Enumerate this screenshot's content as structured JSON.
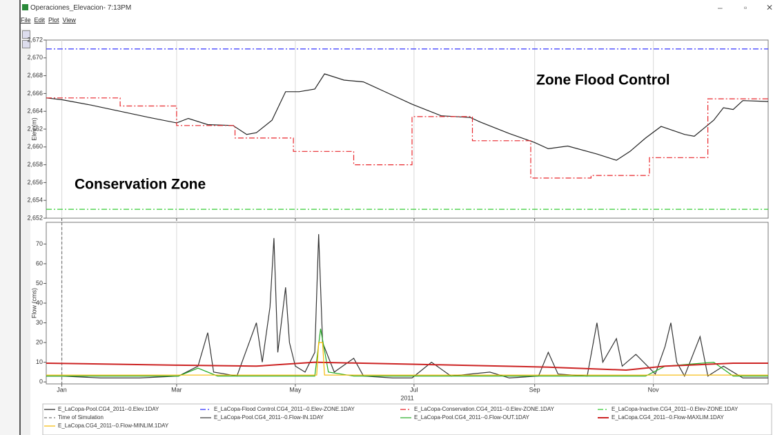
{
  "window": {
    "title": "Operaciones_Elevacion- 7:13PM",
    "menu": [
      "File",
      "Edit",
      "Plot",
      "View"
    ]
  },
  "chart_data": [
    {
      "type": "line",
      "ylabel": "Elev (m)",
      "xlim": [
        -8,
        363
      ],
      "ylim": [
        2652,
        2672
      ],
      "xticks": [
        {
          "value": 0,
          "label": "Jan"
        },
        {
          "value": 59,
          "label": "Mar"
        },
        {
          "value": 120,
          "label": "May"
        },
        {
          "value": 181,
          "label": "Jul"
        },
        {
          "value": 243,
          "label": "Sep"
        },
        {
          "value": 304,
          "label": "Nov"
        }
      ],
      "yticks": [
        {
          "value": 2652,
          "label": "2,652"
        },
        {
          "value": 2654,
          "label": "2,654"
        },
        {
          "value": 2656,
          "label": "2,656"
        },
        {
          "value": 2658,
          "label": "2,658"
        },
        {
          "value": 2660,
          "label": "2,660"
        },
        {
          "value": 2662,
          "label": "2,662"
        },
        {
          "value": 2664,
          "label": "2,664"
        },
        {
          "value": 2666,
          "label": "2,666"
        },
        {
          "value": 2668,
          "label": "2,668"
        },
        {
          "value": 2670,
          "label": "2,670"
        },
        {
          "value": 2672,
          "label": "2,672"
        }
      ],
      "grid": "x",
      "annotations": [
        "Zone Flood Control",
        "Conservation Zone"
      ],
      "series": [
        {
          "name": "E_LaCopa-Pool.CG4_2011--0.Elev.1DAY",
          "color": "#222222",
          "style": "solid",
          "x": [
            -8,
            0,
            15,
            30,
            45,
            59,
            65,
            75,
            88,
            95,
            100,
            108,
            115,
            122,
            130,
            135,
            145,
            155,
            165,
            180,
            195,
            210,
            215,
            230,
            243,
            250,
            260,
            275,
            285,
            292,
            300,
            308,
            320,
            325,
            335,
            340,
            345,
            350,
            363
          ],
          "values": [
            2665.5,
            2665.3,
            2664.7,
            2664,
            2663.3,
            2662.7,
            2663.2,
            2662.5,
            2662.4,
            2661.4,
            2661.6,
            2663,
            2666.2,
            2666.2,
            2666.5,
            2668.2,
            2667.5,
            2667.3,
            2666.3,
            2664.8,
            2663.5,
            2663.3,
            2662.8,
            2661.5,
            2660.5,
            2659.8,
            2660.1,
            2659.2,
            2658.5,
            2659.5,
            2661,
            2662.3,
            2661.4,
            2661.2,
            2663,
            2664.4,
            2664.2,
            2665.2,
            2665.1
          ]
        },
        {
          "name": "E_LaCopa-Flood Control.CG4_2011--0.Elev-ZONE.1DAY",
          "color": "#3333ff",
          "style": "dashdot",
          "x": [
            -8,
            363
          ],
          "values": [
            2671,
            2671
          ]
        },
        {
          "name": "E_LaCopa-Conservation.CG4_2011--0.Elev-ZONE.1DAY",
          "color": "#e8252a",
          "style": "dashdot",
          "x": [
            -8,
            30,
            30,
            59,
            59,
            89,
            89,
            119,
            119,
            150,
            150,
            180,
            180,
            211,
            211,
            241,
            241,
            272,
            272,
            302,
            302,
            332,
            332,
            363
          ],
          "values": [
            2665.5,
            2665.5,
            2664.6,
            2664.6,
            2662.4,
            2662.4,
            2661,
            2661,
            2659.5,
            2659.5,
            2658,
            2658,
            2663.4,
            2663.4,
            2660.7,
            2660.7,
            2656.5,
            2656.5,
            2656.8,
            2656.8,
            2658.8,
            2658.8,
            2665.4,
            2665.4
          ]
        },
        {
          "name": "E_LaCopa-Inactive.CG4_2011--0.Elev-ZONE.1DAY",
          "color": "#33cc33",
          "style": "dashdot",
          "x": [
            -8,
            363
          ],
          "values": [
            2653,
            2653
          ]
        }
      ]
    },
    {
      "type": "line",
      "ylabel": "Flow (cms)",
      "xlabel": "2011",
      "xlim": [
        -8,
        363
      ],
      "ylim": [
        -1,
        81
      ],
      "xticks": [
        {
          "value": 0,
          "label": "Jan"
        },
        {
          "value": 59,
          "label": "Mar"
        },
        {
          "value": 120,
          "label": "May"
        },
        {
          "value": 181,
          "label": "Jul"
        },
        {
          "value": 243,
          "label": "Sep"
        },
        {
          "value": 304,
          "label": "Nov"
        }
      ],
      "yticks": [
        0,
        10,
        20,
        30,
        40,
        50,
        60,
        70
      ],
      "grid": "x",
      "series": [
        {
          "name": "Time of Simulation",
          "color": "#777777",
          "style": "dashed",
          "vertical": true,
          "x": [
            0
          ]
        },
        {
          "name": "E_LaCopa-Pool.CG4_2011--0.Flow-IN.1DAY",
          "color": "#333333",
          "style": "solid",
          "x": [
            -8,
            0,
            20,
            40,
            60,
            70,
            75,
            78,
            90,
            100,
            103,
            107,
            109,
            111,
            115,
            117,
            120,
            125,
            130,
            132,
            134,
            140,
            150,
            155,
            170,
            180,
            190,
            200,
            220,
            230,
            245,
            250,
            255,
            270,
            275,
            278,
            285,
            288,
            295,
            305,
            310,
            313,
            316,
            320,
            328,
            332,
            340,
            350,
            363
          ],
          "values": [
            3,
            3,
            2,
            2,
            3,
            8,
            25,
            5,
            3,
            30,
            10,
            38,
            73,
            15,
            48,
            20,
            8,
            5,
            15,
            75,
            20,
            5,
            12,
            3,
            2,
            2,
            10,
            3,
            5,
            2,
            3,
            15,
            4,
            3,
            30,
            10,
            22,
            8,
            14,
            4,
            18,
            30,
            10,
            3,
            23,
            3,
            8,
            2,
            2
          ]
        },
        {
          "name": "E_LaCopa-Pool.CG4_2011--0.Flow-OUT.1DAY",
          "color": "#22aa22",
          "style": "solid",
          "x": [
            -8,
            60,
            70,
            80,
            130,
            133,
            137,
            150,
            300,
            310,
            335,
            345,
            363
          ],
          "values": [
            3,
            3,
            7,
            3,
            3,
            27,
            5,
            3,
            3,
            8,
            10,
            3,
            3
          ]
        },
        {
          "name": "E_LaCopa.CG4_2011--0.Flow-MAXLIM.1DAY",
          "color": "#cc2222",
          "style": "thick",
          "x": [
            -8,
            60,
            100,
            130,
            180,
            250,
            290,
            310,
            345,
            363
          ],
          "values": [
            9.5,
            8.5,
            8,
            10,
            9,
            7.5,
            6,
            8,
            9.5,
            9.5
          ]
        },
        {
          "name": "E_LaCopa.CG4_2011--0.Flow-MINLIM.1DAY",
          "color": "#f5b800",
          "style": "solid",
          "x": [
            -8,
            131,
            132,
            134,
            135,
            363
          ],
          "values": [
            3.5,
            3.5,
            20,
            20,
            3.5,
            3.5
          ]
        }
      ]
    }
  ]
}
